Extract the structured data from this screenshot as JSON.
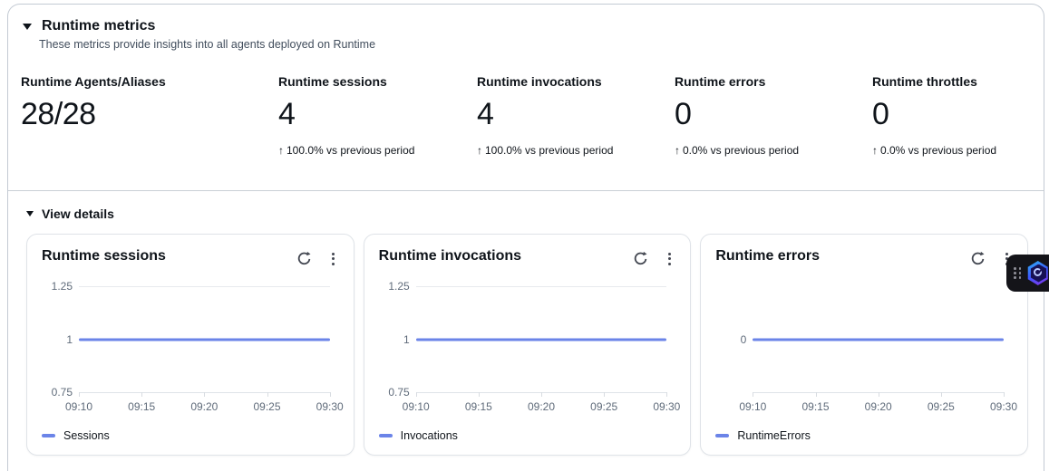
{
  "header": {
    "title": "Runtime metrics",
    "subtitle": "These metrics provide insights into all agents deployed on Runtime"
  },
  "metrics": [
    {
      "label": "Runtime Agents/Aliases",
      "value": "28/28"
    },
    {
      "label": "Runtime sessions",
      "value": "4",
      "trend_arrow": "↑",
      "trend": "100.0% vs previous period"
    },
    {
      "label": "Runtime invocations",
      "value": "4",
      "trend_arrow": "↑",
      "trend": "100.0% vs previous period"
    },
    {
      "label": "Runtime errors",
      "value": "0",
      "trend_arrow": "↑",
      "trend": "0.0% vs previous period"
    },
    {
      "label": "Runtime throttles",
      "value": "0",
      "trend_arrow": "↑",
      "trend": "0.0% vs previous period"
    }
  ],
  "view_details": {
    "label": "View details"
  },
  "icons": {
    "collapse": "▼",
    "refresh": "⟳",
    "ellipsis": "⋮"
  },
  "colors": {
    "line_blue": "#6b84e8",
    "text_dark": "#0f141a",
    "axis_gray": "#5f6b7a",
    "widget_black": "#141419"
  },
  "chart_data": [
    {
      "type": "line",
      "title": "Runtime sessions",
      "x": [
        "09:10",
        "09:15",
        "09:20",
        "09:25",
        "09:30"
      ],
      "series": [
        {
          "name": "Sessions",
          "values": [
            1,
            1,
            1,
            1,
            1
          ]
        }
      ],
      "y_ticks": [
        1.25,
        1,
        0.75
      ],
      "ylim": [
        0.75,
        1.25
      ],
      "xlabel": "",
      "ylabel": "",
      "grid": true,
      "legend_position": "bottom-left",
      "line_color": "#6b84e8"
    },
    {
      "type": "line",
      "title": "Runtime invocations",
      "x": [
        "09:10",
        "09:15",
        "09:20",
        "09:25",
        "09:30"
      ],
      "series": [
        {
          "name": "Invocations",
          "values": [
            1,
            1,
            1,
            1,
            1
          ]
        }
      ],
      "y_ticks": [
        1.25,
        1,
        0.75
      ],
      "ylim": [
        0.75,
        1.25
      ],
      "xlabel": "",
      "ylabel": "",
      "grid": true,
      "legend_position": "bottom-left",
      "line_color": "#6b84e8"
    },
    {
      "type": "line",
      "title": "Runtime errors",
      "x": [
        "09:10",
        "09:15",
        "09:20",
        "09:25",
        "09:30"
      ],
      "series": [
        {
          "name": "RuntimeErrors",
          "values": [
            0,
            0,
            0,
            0,
            0
          ]
        }
      ],
      "y_ticks": [
        0
      ],
      "ylim": [
        -1,
        1
      ],
      "xlabel": "",
      "ylabel": "",
      "grid": true,
      "legend_position": "bottom-left",
      "line_color": "#6b84e8"
    }
  ]
}
